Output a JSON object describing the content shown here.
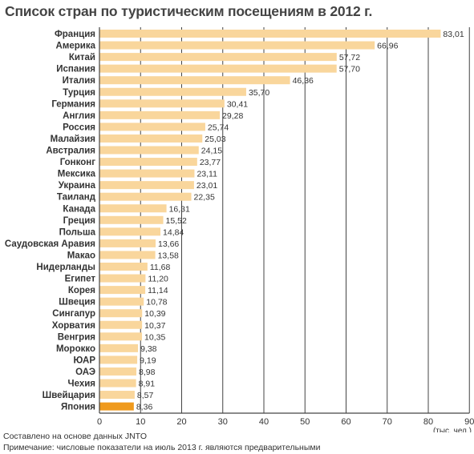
{
  "chart_data": {
    "type": "bar",
    "orientation": "horizontal",
    "title": "Список стран по туристическим посещениям в 2012 г.",
    "categories": [
      "Франция",
      "Америка",
      "Китай",
      "Испания",
      "Италия",
      "Турция",
      "Германия",
      "Англия",
      "Россия",
      "Малайзия",
      "Австралия",
      "Гонконг",
      "Мексика",
      "Украина",
      "Таиланд",
      "Канада",
      "Греция",
      "Польша",
      "Саудовская Аравия",
      "Макао",
      "Нидерланды",
      "Египет",
      "Корея",
      "Швеция",
      "Сингапур",
      "Хорватия",
      "Венгрия",
      "Морокко",
      "ЮАР",
      "ОАЭ",
      "Чехия",
      "Швейцария",
      "Япония"
    ],
    "values": [
      83.01,
      66.96,
      57.72,
      57.7,
      46.36,
      35.7,
      30.41,
      29.28,
      25.74,
      25.03,
      24.15,
      23.77,
      23.11,
      23.01,
      22.35,
      16.31,
      15.52,
      14.84,
      13.66,
      13.58,
      11.68,
      11.2,
      11.14,
      10.78,
      10.39,
      10.37,
      10.35,
      9.38,
      9.19,
      8.98,
      8.91,
      8.57,
      8.36
    ],
    "value_labels": [
      "83,01",
      "66,96",
      "57,72",
      "57,70",
      "46,36",
      "35,70",
      "30,41",
      "29,28",
      "25,74",
      "25,03",
      "24,15",
      "23,77",
      "23,11",
      "23,01",
      "22,35",
      "16,31",
      "15,52",
      "14,84",
      "13,66",
      "13,58",
      "11,68",
      "11,20",
      "11,14",
      "10,78",
      "10,39",
      "10,37",
      "10,35",
      "9,38",
      "9,19",
      "8,98",
      "8,91",
      "8,57",
      "8,36"
    ],
    "highlight_category": "Япония",
    "xlim": [
      0,
      90
    ],
    "xticks": [
      "0",
      "10",
      "20",
      "30",
      "40",
      "50",
      "60",
      "70",
      "80",
      "90"
    ],
    "xlabel": "(тыс. чел.)",
    "grid": true,
    "colors": {
      "bar": "#f9d69c",
      "highlight": "#ef9a1d",
      "grid": "#444444",
      "axis": "#444444",
      "title": "#444444"
    }
  },
  "footnotes": {
    "source": "Составлено на основе данных JNTO",
    "note": "Примечание: числовые показатели на июль 2013 г. являются предварительными"
  }
}
